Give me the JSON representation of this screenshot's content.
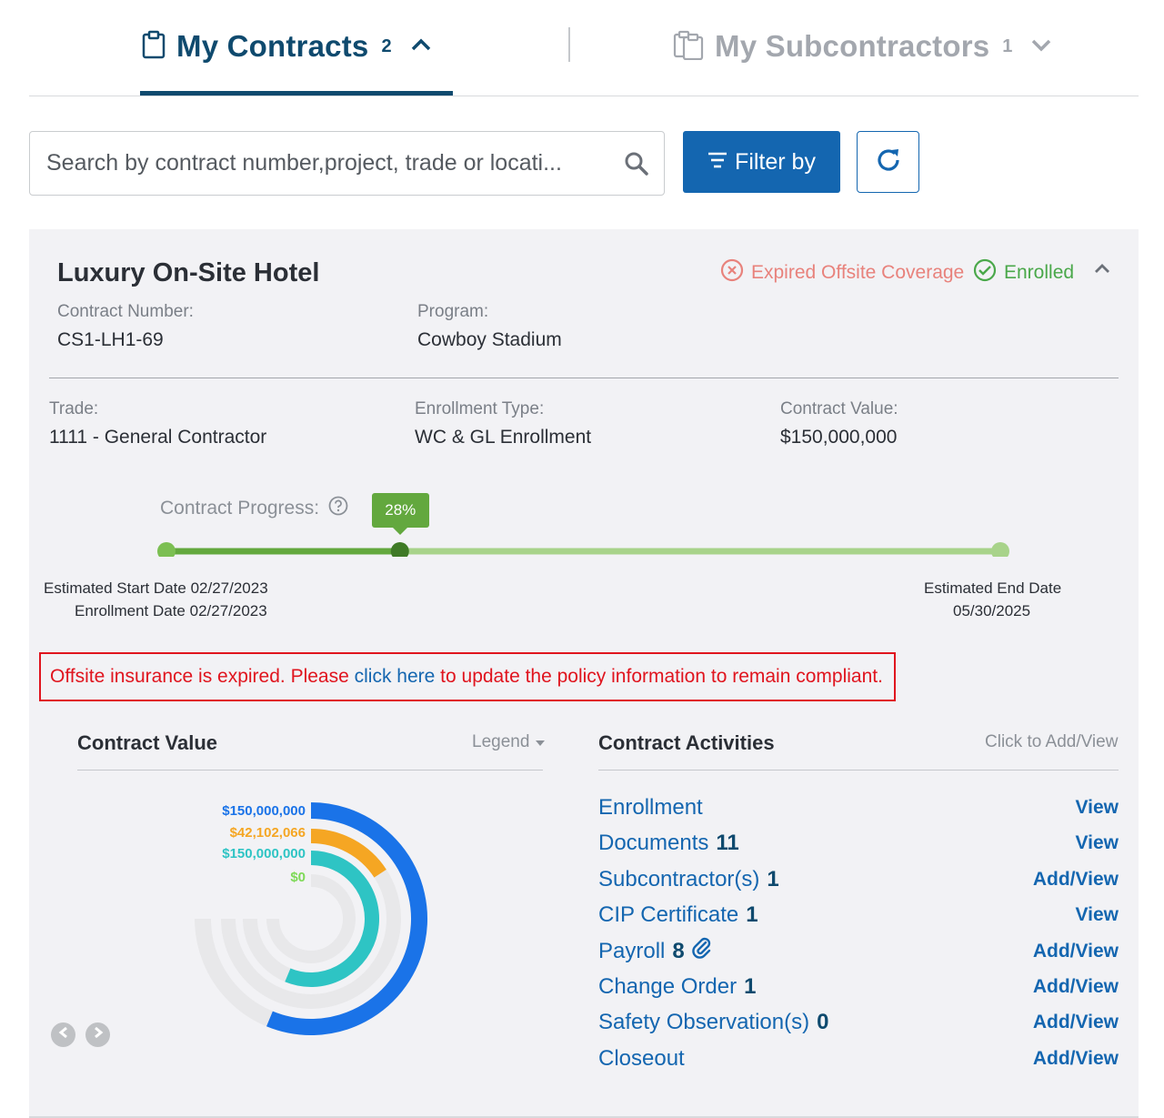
{
  "tabs": {
    "contracts": {
      "label": "My Contracts",
      "count": "2"
    },
    "subcontractors": {
      "label": "My Subcontractors",
      "count": "1"
    }
  },
  "search": {
    "placeholder": "Search by contract number,project, trade or locati..."
  },
  "toolbar": {
    "filter_label": "Filter by"
  },
  "contract": {
    "title": "Luxury On-Site Hotel",
    "status_expired": "Expired Offsite Coverage",
    "status_enrolled": "Enrolled",
    "number_label": "Contract Number:",
    "number": "CS1-LH1-69",
    "program_label": "Program:",
    "program": "Cowboy Stadium",
    "trade_label": "Trade:",
    "trade": "1111 - General Contractor",
    "enrollment_type_label": "Enrollment Type:",
    "enrollment_type": "WC & GL Enrollment",
    "value_label": "Contract Value:",
    "value": "$150,000,000"
  },
  "progress": {
    "label": "Contract Progress:",
    "percent_text": "28%",
    "percent": 0.28,
    "start_date": "Estimated Start Date 02/27/2023",
    "enrollment_date": "Enrollment Date 02/27/2023",
    "end_label": "Estimated End Date",
    "end_date": "05/30/2025"
  },
  "alert": {
    "before": "Offsite insurance is expired. Please ",
    "link": "click here",
    "after": " to update the policy information to remain compliant."
  },
  "value_section": {
    "title": "Contract Value",
    "legend_label": "Legend"
  },
  "chart_data": {
    "type": "radial-bar",
    "series": [
      {
        "label": "$150,000,000",
        "value": 150000000,
        "color": "#1a73e8"
      },
      {
        "label": "$42,102,066",
        "value": 42102066,
        "color": "#f5a623"
      },
      {
        "label": "$150,000,000",
        "value": 150000000,
        "color": "#2ec4c4"
      },
      {
        "label": "$0",
        "value": 0,
        "color": "#7ed957"
      }
    ],
    "max": 200000000
  },
  "activities": {
    "title": "Contract Activities",
    "hint": "Click to Add/View",
    "items": [
      {
        "name": "Enrollment",
        "count": "",
        "link": "View"
      },
      {
        "name": "Documents",
        "count": "11",
        "link": "View"
      },
      {
        "name": "Subcontractor(s)",
        "count": "1",
        "link": "Add/View"
      },
      {
        "name": "CIP Certificate",
        "count": "1",
        "link": "View"
      },
      {
        "name": "Payroll",
        "count": "8",
        "link": "Add/View",
        "icon": "paperclip-icon"
      },
      {
        "name": "Change Order",
        "count": "1",
        "link": "Add/View"
      },
      {
        "name": "Safety Observation(s)",
        "count": "0",
        "link": "Add/View"
      },
      {
        "name": "Closeout",
        "count": "",
        "link": "Add/View"
      }
    ]
  }
}
